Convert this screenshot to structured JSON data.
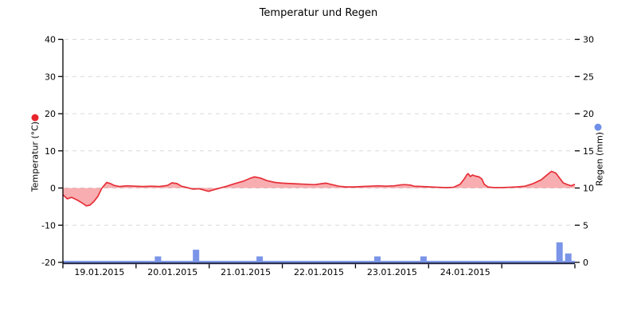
{
  "title": "Temperatur und Regen",
  "chart_data": {
    "type": "combo-line-bar",
    "title": "Temperatur und Regen",
    "x_axis": {
      "labels": [
        "19.01.2015",
        "20.01.2015",
        "21.01.2015",
        "22.01.2015",
        "23.01.2015",
        "24.01.2015"
      ],
      "domain_days": [
        0,
        7
      ],
      "labels_centered_on_days": [
        0,
        1,
        2,
        3,
        4,
        5
      ]
    },
    "y_left": {
      "label": "Temperatur (°C)",
      "min": -20,
      "max": 40,
      "ticks": [
        40,
        30,
        20,
        10,
        0,
        -10,
        -20
      ]
    },
    "y_right": {
      "label": "Regen (mm)",
      "min": 0,
      "max": 30,
      "ticks": [
        30,
        25,
        20,
        15,
        10,
        5,
        0
      ]
    },
    "temperature": {
      "name": "Temperatur (°C)",
      "type": "area-line",
      "unit": "°C",
      "points": [
        [
          0.0,
          -1.8
        ],
        [
          0.06,
          -2.9
        ],
        [
          0.12,
          -2.5
        ],
        [
          0.2,
          -3.3
        ],
        [
          0.26,
          -4.0
        ],
        [
          0.32,
          -4.8
        ],
        [
          0.37,
          -4.6
        ],
        [
          0.42,
          -3.7
        ],
        [
          0.48,
          -2.2
        ],
        [
          0.53,
          -0.1
        ],
        [
          0.58,
          1.1
        ],
        [
          0.6,
          1.5
        ],
        [
          0.65,
          1.2
        ],
        [
          0.7,
          0.7
        ],
        [
          0.77,
          0.4
        ],
        [
          0.88,
          0.6
        ],
        [
          0.99,
          0.5
        ],
        [
          1.1,
          0.4
        ],
        [
          1.21,
          0.5
        ],
        [
          1.32,
          0.4
        ],
        [
          1.43,
          0.7
        ],
        [
          1.49,
          1.4
        ],
        [
          1.56,
          1.2
        ],
        [
          1.62,
          0.5
        ],
        [
          1.7,
          0.1
        ],
        [
          1.78,
          -0.3
        ],
        [
          1.86,
          -0.2
        ],
        [
          1.92,
          -0.5
        ],
        [
          1.99,
          -0.9
        ],
        [
          2.06,
          -0.5
        ],
        [
          2.13,
          -0.1
        ],
        [
          2.24,
          0.5
        ],
        [
          2.35,
          1.2
        ],
        [
          2.46,
          1.8
        ],
        [
          2.57,
          2.7
        ],
        [
          2.62,
          3.0
        ],
        [
          2.7,
          2.7
        ],
        [
          2.79,
          2.0
        ],
        [
          2.9,
          1.5
        ],
        [
          3.0,
          1.3
        ],
        [
          3.11,
          1.2
        ],
        [
          3.22,
          1.1
        ],
        [
          3.33,
          1.0
        ],
        [
          3.44,
          0.9
        ],
        [
          3.55,
          1.2
        ],
        [
          3.6,
          1.3
        ],
        [
          3.66,
          1.0
        ],
        [
          3.77,
          0.5
        ],
        [
          3.87,
          0.3
        ],
        [
          3.98,
          0.3
        ],
        [
          4.09,
          0.4
        ],
        [
          4.2,
          0.5
        ],
        [
          4.31,
          0.6
        ],
        [
          4.42,
          0.5
        ],
        [
          4.53,
          0.6
        ],
        [
          4.64,
          0.9
        ],
        [
          4.69,
          0.9
        ],
        [
          4.75,
          0.8
        ],
        [
          4.8,
          0.5
        ],
        [
          4.91,
          0.4
        ],
        [
          5.02,
          0.3
        ],
        [
          5.13,
          0.2
        ],
        [
          5.24,
          0.1
        ],
        [
          5.34,
          0.2
        ],
        [
          5.43,
          1.0
        ],
        [
          5.49,
          2.5
        ],
        [
          5.52,
          3.5
        ],
        [
          5.54,
          3.9
        ],
        [
          5.57,
          3.1
        ],
        [
          5.6,
          3.5
        ],
        [
          5.64,
          3.2
        ],
        [
          5.69,
          3.0
        ],
        [
          5.73,
          2.4
        ],
        [
          5.76,
          1.0
        ],
        [
          5.81,
          0.3
        ],
        [
          5.89,
          0.1
        ],
        [
          6.0,
          0.1
        ],
        [
          6.1,
          0.2
        ],
        [
          6.21,
          0.3
        ],
        [
          6.32,
          0.5
        ],
        [
          6.43,
          1.2
        ],
        [
          6.54,
          2.2
        ],
        [
          6.63,
          3.7
        ],
        [
          6.68,
          4.5
        ],
        [
          6.74,
          4.0
        ],
        [
          6.79,
          2.7
        ],
        [
          6.84,
          1.4
        ],
        [
          6.9,
          0.9
        ],
        [
          6.95,
          0.6
        ],
        [
          7.0,
          1.0
        ]
      ]
    },
    "rain": {
      "name": "Regen (mm)",
      "type": "bar",
      "unit": "mm",
      "points": [
        [
          1.3,
          0.8
        ],
        [
          1.82,
          1.7
        ],
        [
          2.69,
          0.8
        ],
        [
          4.3,
          0.8
        ],
        [
          4.93,
          0.8
        ],
        [
          6.79,
          2.7
        ],
        [
          6.91,
          1.2
        ]
      ]
    },
    "colors": {
      "temperature_line": "#e62f38",
      "temperature_fill": "rgba(240,75,80,0.45)",
      "temperature_dot": "#e8252d",
      "rain_bar": "#7a95e8",
      "rain_dot": "#6f8fe8",
      "rain_baseline": "#7a95e8",
      "grid": "#d8d8d8",
      "axis": "#000000",
      "x_spine": "#161c3e",
      "background": "#ffffff"
    }
  }
}
